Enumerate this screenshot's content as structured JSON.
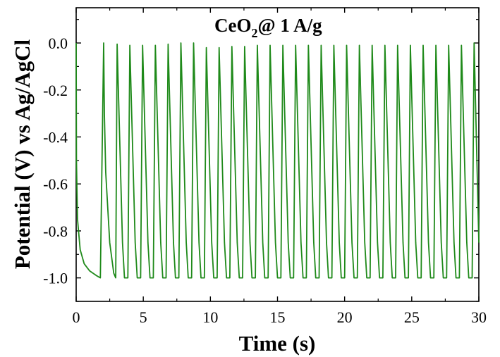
{
  "chart_data": {
    "type": "line",
    "annotation": {
      "main": "CeO",
      "sub": "2",
      "rest": "@ 1 A/g"
    },
    "xlabel": "Time (s)",
    "ylabel": "Potential (V) vs Ag/AgCl",
    "xlim": [
      0,
      30
    ],
    "ylim": [
      -1.1,
      0.15
    ],
    "x_ticks": [
      0,
      5,
      10,
      15,
      20,
      25,
      30
    ],
    "y_ticks": [
      0.0,
      -0.2,
      -0.4,
      -0.6,
      -0.8,
      -1.0
    ],
    "y_tick_labels": [
      "0.0",
      "-0.2",
      "-0.4",
      "-0.6",
      "-0.8",
      "-1.0"
    ],
    "grid": false,
    "series": [
      {
        "color": "#1f8a1a",
        "x": [
          0,
          0.02,
          0.1,
          0.3,
          0.6,
          1.0,
          1.5,
          1.8,
          2.05,
          2.1,
          2.2,
          2.5,
          2.8,
          2.95,
          3.05,
          3.45,
          3.6,
          3.85,
          4.0,
          4.4,
          4.55,
          4.8,
          4.95,
          5.35,
          5.5,
          5.75,
          5.9,
          6.3,
          6.45,
          6.7,
          6.85,
          7.25,
          7.4,
          7.65,
          7.8,
          8.2,
          8.35,
          8.6,
          8.75,
          9.15,
          9.3,
          9.55,
          9.7,
          10.1,
          10.25,
          10.5,
          10.65,
          11.05,
          11.2,
          11.45,
          11.6,
          12.0,
          12.15,
          12.4,
          12.55,
          12.95,
          13.1,
          13.35,
          13.5,
          13.9,
          14.05,
          14.3,
          14.45,
          14.85,
          15.0,
          15.25,
          15.4,
          15.8,
          15.95,
          16.2,
          16.35,
          16.75,
          16.9,
          17.15,
          17.3,
          17.7,
          17.85,
          18.1,
          18.25,
          18.65,
          18.8,
          19.05,
          19.2,
          19.6,
          19.75,
          20.0,
          20.15,
          20.55,
          20.7,
          20.95,
          21.1,
          21.5,
          21.65,
          21.9,
          22.05,
          22.45,
          22.6,
          22.85,
          23.0,
          23.4,
          23.55,
          23.8,
          23.95,
          24.35,
          24.5,
          24.75,
          24.9,
          25.3,
          25.45,
          25.7,
          25.85,
          26.25,
          26.4,
          26.65,
          26.8,
          27.2,
          27.35,
          27.6,
          27.75,
          28.15,
          28.3,
          28.55,
          28.7,
          29.1,
          29.25,
          29.5,
          29.65,
          30.0
        ],
        "y": [
          0.0,
          -0.5,
          -0.75,
          -0.88,
          -0.94,
          -0.97,
          -0.99,
          -1.0,
          0.0,
          -0.3,
          -0.55,
          -0.85,
          -0.98,
          -1.0,
          -0.005,
          -0.85,
          -1.0,
          -1.0,
          -0.01,
          -0.85,
          -1.0,
          -1.0,
          -0.01,
          -0.85,
          -1.0,
          -1.0,
          -0.01,
          -0.85,
          -1.0,
          -1.0,
          -0.005,
          -0.85,
          -1.0,
          -1.0,
          0.0,
          -0.85,
          -1.0,
          -1.0,
          0.0,
          -0.85,
          -1.0,
          -1.0,
          -0.02,
          -0.85,
          -1.0,
          -1.0,
          -0.02,
          -0.85,
          -1.0,
          -1.0,
          -0.015,
          -0.85,
          -1.0,
          -1.0,
          -0.015,
          -0.85,
          -1.0,
          -1.0,
          -0.01,
          -0.85,
          -1.0,
          -1.0,
          -0.01,
          -0.85,
          -1.0,
          -1.0,
          -0.01,
          -0.85,
          -1.0,
          -1.0,
          -0.01,
          -0.85,
          -1.0,
          -1.0,
          -0.01,
          -0.85,
          -1.0,
          -1.0,
          -0.01,
          -0.85,
          -1.0,
          -1.0,
          -0.01,
          -0.85,
          -1.0,
          -1.0,
          -0.01,
          -0.85,
          -1.0,
          -1.0,
          -0.01,
          -0.85,
          -1.0,
          -1.0,
          -0.01,
          -0.85,
          -1.0,
          -1.0,
          -0.01,
          -0.85,
          -1.0,
          -1.0,
          -0.01,
          -0.85,
          -1.0,
          -1.0,
          -0.01,
          -0.85,
          -1.0,
          -1.0,
          -0.01,
          -0.85,
          -1.0,
          -1.0,
          -0.01,
          -0.85,
          -1.0,
          -1.0,
          -0.01,
          -0.85,
          -1.0,
          -1.0,
          -0.01,
          -0.85,
          -1.0,
          -1.0,
          0.0,
          -0.85
        ]
      }
    ]
  }
}
